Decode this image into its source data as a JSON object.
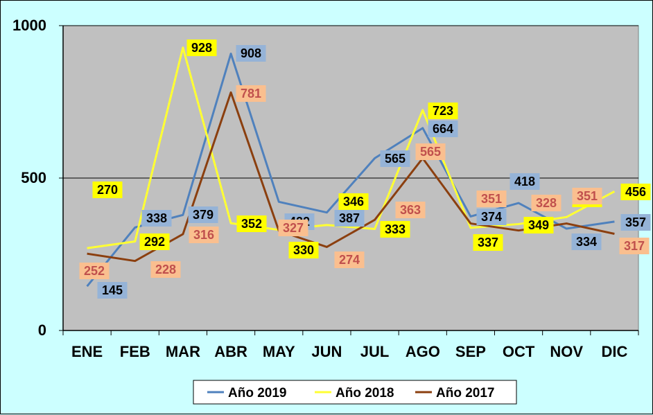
{
  "chart_data": {
    "type": "line",
    "title": "",
    "xlabel": "",
    "ylabel": "",
    "categories": [
      "ENE",
      "FEB",
      "MAR",
      "ABR",
      "MAY",
      "JUN",
      "JUL",
      "AGO",
      "SEP",
      "OCT",
      "NOV",
      "DIC"
    ],
    "ylim": [
      0,
      1000
    ],
    "yticks": [
      0,
      500,
      1000
    ],
    "grid": "horizontal major lines",
    "legend_position": "bottom",
    "plot_background": "#c0c0c0",
    "page_background": "#ccffff",
    "series": [
      {
        "name": "Año 2019",
        "color": "#4f81bd",
        "label_fill": "#95b3d7",
        "label_text_color": "#000000",
        "values": [
          145,
          338,
          379,
          908,
          422,
          387,
          565,
          664,
          374,
          418,
          334,
          357
        ]
      },
      {
        "name": "Año 2018",
        "color": "#ffff33",
        "label_fill": "#ffff00",
        "label_text_color": "#000000",
        "values": [
          270,
          292,
          928,
          352,
          330,
          346,
          333,
          723,
          337,
          349,
          372,
          456
        ]
      },
      {
        "name": "Año 2017",
        "color": "#8b3f0f",
        "label_fill": "#fabf8f",
        "label_text_color": "#c0504d",
        "values": [
          252,
          228,
          316,
          781,
          327,
          274,
          363,
          565,
          351,
          328,
          351,
          317
        ]
      }
    ]
  }
}
